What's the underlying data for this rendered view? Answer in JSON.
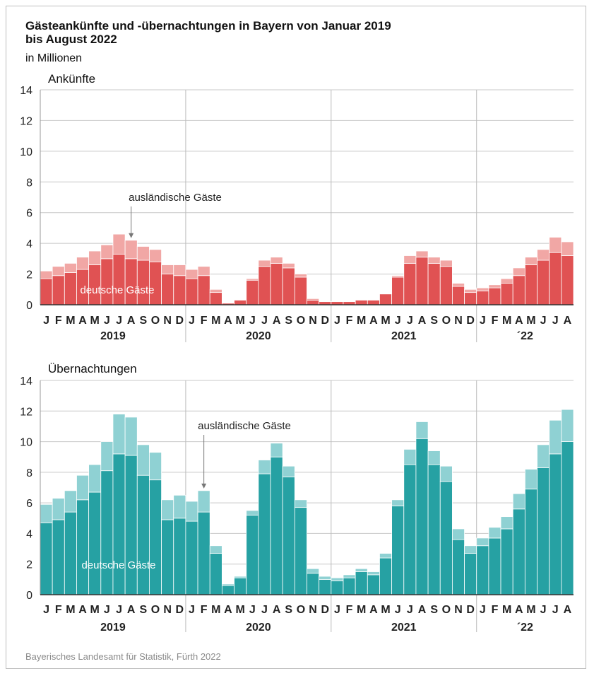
{
  "title_line1": "Gästeankünfte und -übernachtungen in Bayern von Januar 2019",
  "title_line2": "bis August 2022",
  "subtitle": "in Millionen",
  "source": "Bayerisches Landesamt für Statistik, Fürth 2022",
  "month_labels": [
    "J",
    "F",
    "M",
    "A",
    "M",
    "J",
    "J",
    "A",
    "S",
    "O",
    "N",
    "D",
    "J",
    "F",
    "M",
    "A",
    "M",
    "J",
    "J",
    "A",
    "S",
    "O",
    "N",
    "D",
    "J",
    "F",
    "M",
    "A",
    "M",
    "J",
    "J",
    "A",
    "S",
    "O",
    "N",
    "D",
    "J",
    "F",
    "M",
    "A",
    "M",
    "J",
    "J",
    "A"
  ],
  "year_labels": [
    "2019",
    "2020",
    "2021",
    "´22"
  ],
  "colors": {
    "arrivals_domestic": "#e05253",
    "arrivals_foreign": "#f1a7a5",
    "nights_domestic": "#26a1a3",
    "nights_foreign": "#8fd1d3",
    "axis": "#333333",
    "grid": "#c8c8c8"
  },
  "chart_data": [
    {
      "type": "bar",
      "stacked": true,
      "title": "Ankünfte",
      "ylim": [
        0,
        14
      ],
      "yticks": [
        0,
        2,
        4,
        6,
        8,
        10,
        12,
        14
      ],
      "grid": "horizontal",
      "annotation_foreign": "ausländische Gäste",
      "annotation_domestic": "deutsche Gäste",
      "series": [
        {
          "name": "deutsche Gäste",
          "values": [
            1.7,
            1.9,
            2.1,
            2.3,
            2.6,
            3.0,
            3.3,
            3.0,
            2.9,
            2.8,
            2.0,
            1.9,
            1.7,
            1.9,
            0.8,
            0.1,
            0.3,
            1.6,
            2.5,
            2.7,
            2.4,
            1.8,
            0.3,
            0.2,
            0.2,
            0.2,
            0.3,
            0.3,
            0.7,
            1.8,
            2.7,
            3.1,
            2.7,
            2.5,
            1.2,
            0.8,
            0.9,
            1.1,
            1.4,
            1.9,
            2.6,
            2.9,
            3.4,
            3.2
          ]
        },
        {
          "name": "ausländische Gäste",
          "values": [
            0.5,
            0.6,
            0.6,
            0.8,
            0.9,
            0.9,
            1.3,
            1.2,
            0.9,
            0.8,
            0.6,
            0.7,
            0.6,
            0.6,
            0.2,
            0.0,
            0.0,
            0.1,
            0.4,
            0.4,
            0.3,
            0.2,
            0.1,
            0.0,
            0.0,
            0.0,
            0.0,
            0.0,
            0.0,
            0.1,
            0.5,
            0.4,
            0.4,
            0.4,
            0.2,
            0.2,
            0.2,
            0.2,
            0.3,
            0.5,
            0.5,
            0.7,
            1.0,
            0.9
          ]
        }
      ]
    },
    {
      "type": "bar",
      "stacked": true,
      "title": "Übernachtungen",
      "ylim": [
        0,
        14
      ],
      "yticks": [
        0,
        2,
        4,
        6,
        8,
        10,
        12,
        14
      ],
      "grid": "horizontal",
      "annotation_foreign": "ausländische Gäste",
      "annotation_domestic": "deutsche Gäste",
      "series": [
        {
          "name": "deutsche Gäste",
          "values": [
            4.7,
            4.9,
            5.4,
            6.2,
            6.7,
            8.1,
            9.2,
            9.1,
            7.8,
            7.5,
            4.9,
            5.0,
            4.8,
            5.4,
            2.7,
            0.6,
            1.1,
            5.2,
            7.9,
            9.0,
            7.7,
            5.7,
            1.4,
            1.0,
            0.9,
            1.1,
            1.5,
            1.3,
            2.4,
            5.8,
            8.5,
            10.2,
            8.5,
            7.4,
            3.6,
            2.7,
            3.2,
            3.7,
            4.3,
            5.6,
            6.9,
            8.3,
            9.2,
            10.0
          ]
        },
        {
          "name": "ausländische Gäste",
          "values": [
            1.2,
            1.4,
            1.4,
            1.6,
            1.8,
            1.9,
            2.6,
            2.5,
            2.0,
            1.8,
            1.3,
            1.5,
            1.3,
            1.4,
            0.5,
            0.1,
            0.1,
            0.3,
            0.9,
            0.9,
            0.7,
            0.5,
            0.3,
            0.2,
            0.2,
            0.2,
            0.2,
            0.2,
            0.3,
            0.4,
            1.0,
            1.1,
            0.9,
            1.0,
            0.7,
            0.5,
            0.5,
            0.7,
            0.8,
            1.0,
            1.3,
            1.5,
            2.2,
            2.1
          ]
        }
      ]
    }
  ]
}
